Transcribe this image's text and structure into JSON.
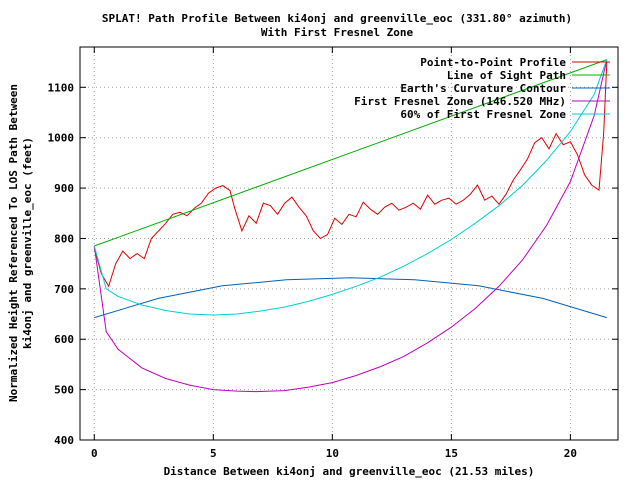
{
  "chart_data": {
    "type": "line",
    "title": "SPLAT! Path Profile Between ki4onj and greenville_eoc (331.80° azimuth)",
    "subtitle": "With First Fresnel Zone",
    "xlabel": "Distance Between ki4onj and greenville_eoc (21.53 miles)",
    "ylabel": "Normalized Height Referenced To LOS Path Between",
    "ylabel2": "ki4onj and greenville_eoc (feet)",
    "xlim": [
      -0.6,
      22.0
    ],
    "ylim": [
      400,
      1180
    ],
    "xticks": [
      0,
      5,
      10,
      15,
      20
    ],
    "yticks": [
      400,
      500,
      600,
      700,
      800,
      900,
      1000,
      1100
    ],
    "grid": true,
    "legend_position": "top-right",
    "series": [
      {
        "name": "Point-to-Point Profile",
        "color": "#e00000",
        "x": [
          0,
          0.3,
          0.6,
          0.9,
          1.2,
          1.5,
          1.8,
          2.1,
          2.4,
          2.7,
          3.0,
          3.3,
          3.6,
          3.9,
          4.2,
          4.5,
          4.8,
          5.1,
          5.4,
          5.7,
          5.9,
          6.2,
          6.5,
          6.8,
          7.1,
          7.4,
          7.7,
          8.0,
          8.3,
          8.6,
          8.9,
          9.2,
          9.5,
          9.8,
          10.1,
          10.4,
          10.7,
          11.0,
          11.3,
          11.6,
          11.9,
          12.2,
          12.5,
          12.8,
          13.1,
          13.4,
          13.7,
          14.0,
          14.3,
          14.6,
          14.9,
          15.2,
          15.5,
          15.8,
          16.1,
          16.4,
          16.7,
          17.0,
          17.3,
          17.6,
          17.9,
          18.2,
          18.5,
          18.8,
          19.1,
          19.4,
          19.7,
          20.0,
          20.3,
          20.6,
          20.9,
          21.2,
          21.4,
          21.53
        ],
        "y": [
          780,
          730,
          705,
          750,
          775,
          760,
          770,
          760,
          800,
          815,
          830,
          848,
          852,
          845,
          860,
          870,
          890,
          900,
          905,
          895,
          860,
          815,
          845,
          830,
          870,
          865,
          848,
          870,
          882,
          862,
          845,
          815,
          800,
          808,
          840,
          828,
          848,
          843,
          872,
          858,
          848,
          862,
          870,
          856,
          862,
          870,
          858,
          886,
          868,
          876,
          880,
          868,
          876,
          888,
          906,
          876,
          884,
          868,
          888,
          916,
          936,
          958,
          990,
          1000,
          978,
          1008,
          986,
          992,
          966,
          926,
          906,
          896,
          1010,
          1150
        ]
      },
      {
        "name": "Line of Sight Path",
        "color": "#00b000",
        "x": [
          0,
          21.53
        ],
        "y": [
          785,
          1155
        ]
      },
      {
        "name": "Earth's Curvature Contour",
        "color": "#0060c0",
        "x": [
          0,
          2.69,
          5.38,
          8.07,
          10.76,
          13.46,
          16.15,
          18.84,
          21.53
        ],
        "y": [
          643,
          681,
          706,
          718,
          722,
          718,
          706,
          681,
          643
        ]
      },
      {
        "name": "First Fresnel Zone (146.520 MHz)",
        "color": "#c000c0",
        "x": [
          0,
          0.5,
          1.0,
          2.0,
          3.0,
          4.0,
          5.0,
          6.0,
          6.8,
          8.0,
          9.0,
          10.0,
          11.0,
          12.0,
          13.0,
          14.0,
          15.0,
          16.0,
          17.0,
          18.0,
          19.0,
          20.0,
          21.0,
          21.53
        ],
        "y": [
          785,
          615,
          580,
          543,
          522,
          509,
          500,
          497,
          496,
          498,
          505,
          514,
          528,
          545,
          566,
          593,
          624,
          661,
          705,
          758,
          826,
          913,
          1044,
          1155
        ]
      },
      {
        "name": "60% of First Fresnel Zone",
        "color": "#00d0d0",
        "x": [
          0,
          0.5,
          1.0,
          2.0,
          3.0,
          4.0,
          5.0,
          6.0,
          7.0,
          8.0,
          9.0,
          10.0,
          11.0,
          12.0,
          13.0,
          14.0,
          15.0,
          16.0,
          17.0,
          18.0,
          19.0,
          20.0,
          21.0,
          21.53
        ],
        "y": [
          785,
          700,
          685,
          668,
          657,
          650,
          648,
          650,
          656,
          664,
          675,
          689,
          705,
          723,
          745,
          770,
          798,
          830,
          865,
          906,
          955,
          1012,
          1086,
          1155
        ]
      }
    ]
  }
}
